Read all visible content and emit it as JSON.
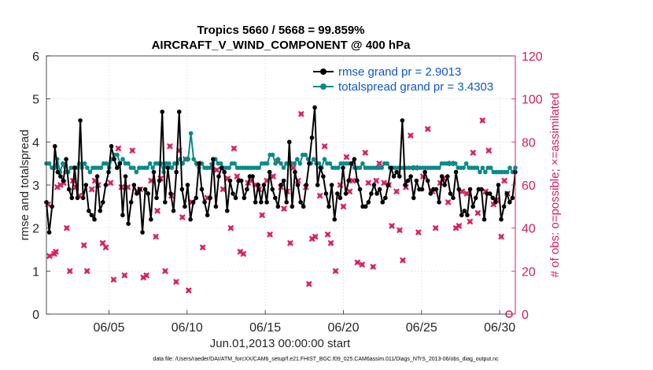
{
  "chart_data": {
    "type": "line",
    "title": "Tropics 5660 / 5668 = 99.859%",
    "subtitle": "AIRCRAFT_V_WIND_COMPONENT @ 400 hPa",
    "xlabel": "Jun.01,2013 00:00:00 start",
    "ylabel": "rmse and totalspread",
    "ylabel_right": "# of obs: o=possible; ×=assimilated",
    "xlim": [
      1,
      31
    ],
    "ylim": [
      0,
      6
    ],
    "ylim_right": [
      0,
      120
    ],
    "x_ticks": [
      5,
      10,
      15,
      20,
      25,
      30
    ],
    "x_tick_labels": [
      "06/05",
      "06/10",
      "06/15",
      "06/20",
      "06/25",
      "06/30"
    ],
    "y_ticks": [
      0,
      1,
      2,
      3,
      4,
      5,
      6
    ],
    "y_ticks_right": [
      0,
      20,
      40,
      60,
      80,
      100,
      120
    ],
    "footnote": "data file: /Users/raeder/DAI/ATM_forcXX/CAM6_setup/f.e21.FHIST_BGC.f09_025.CAM6assim.011/Diags_NTrS_2013-06/obs_diag_output.nc",
    "series": [
      {
        "name": "rmse grand pr = 2.9013",
        "color": "#000000",
        "marker": "circle",
        "values": [
          2.6,
          1.9,
          2.5,
          3.9,
          3.3,
          3.2,
          3.1,
          3.6,
          2.9,
          2.7,
          3.4,
          2.7,
          4.5,
          2.7,
          3.0,
          2.4,
          2.3,
          2.2,
          3.2,
          2.4,
          2.6,
          3.0,
          3.3,
          3.9,
          3.6,
          3.4,
          3.5,
          2.3,
          3.2,
          2.1,
          2.6,
          3.0,
          2.8,
          2.9,
          1.9,
          2.9,
          2.8,
          2.2,
          3.3,
          2.7,
          3.1,
          4.7,
          2.6,
          3.4,
          2.8,
          2.4,
          3.3,
          4.7,
          2.9,
          2.5,
          3.0,
          2.2,
          2.6,
          2.7,
          3.5,
          2.9,
          2.6,
          2.3,
          2.7,
          3.6,
          2.5,
          3.2,
          3.4,
          3.3,
          2.4,
          3.1,
          2.8,
          2.7,
          3.1,
          3.1,
          2.7,
          2.9,
          3.2,
          3.2,
          2.6,
          3.0,
          2.6,
          3.0,
          2.6,
          3.3,
          2.9,
          2.7,
          2.5,
          3.0,
          3.1,
          2.6,
          4.0,
          2.5,
          3.3,
          3.0,
          2.6,
          2.5,
          3.0,
          3.5,
          4.1,
          4.8,
          3.0,
          3.4,
          3.2,
          2.8,
          2.5,
          3.0,
          2.2,
          2.8,
          2.7,
          3.4,
          2.8,
          3.1,
          3.5,
          3.6,
          3.1,
          2.9,
          2.5,
          2.5,
          2.6,
          2.8,
          3.0,
          2.8,
          2.9,
          2.6,
          2.7,
          3.0,
          3.4,
          3.2,
          3.3,
          3.2,
          4.5,
          3.0,
          3.1,
          3.2,
          2.7,
          3.1,
          2.9,
          2.9,
          3.3,
          3.1,
          2.8,
          2.9,
          2.9,
          2.6,
          3.2,
          3.0,
          3.2,
          2.8,
          2.7,
          3.3,
          2.9,
          2.3,
          2.4,
          2.3,
          2.9,
          2.5,
          2.7,
          2.9,
          2.9,
          2.2,
          2.8,
          2.8,
          2.7,
          2.6,
          3.0,
          2.2,
          2.5,
          2.8,
          2.6,
          2.7,
          3.3
        ]
      },
      {
        "name": "totalspread grand pr = 3.4303",
        "color": "#0a8a8a",
        "marker": "circle",
        "values": [
          3.5,
          3.5,
          3.4,
          3.4,
          3.6,
          3.3,
          3.5,
          3.3,
          3.3,
          3.4,
          3.4,
          3.4,
          3.5,
          3.4,
          3.5,
          3.4,
          3.3,
          3.4,
          3.4,
          3.4,
          3.4,
          3.5,
          3.5,
          3.4,
          3.6,
          3.7,
          3.7,
          3.5,
          3.6,
          3.5,
          3.5,
          3.4,
          3.4,
          3.3,
          3.4,
          3.4,
          3.4,
          3.4,
          3.5,
          3.4,
          3.5,
          3.5,
          3.5,
          3.3,
          3.5,
          3.5,
          3.4,
          3.5,
          3.5,
          3.6,
          3.5,
          3.6,
          3.6,
          4.2,
          3.6,
          3.5,
          3.4,
          3.5,
          3.4,
          3.4,
          3.4,
          3.5,
          3.6,
          3.5,
          3.5,
          3.4,
          3.4,
          3.4,
          3.5,
          3.5,
          3.4,
          3.4,
          3.4,
          3.4,
          3.4,
          3.4,
          3.4,
          3.4,
          3.4,
          3.5,
          3.5,
          3.5,
          3.7,
          3.7,
          3.5,
          3.6,
          3.5,
          3.4,
          3.5,
          3.5,
          3.5,
          3.5,
          3.6,
          3.5,
          3.7,
          3.7,
          3.6,
          3.5,
          3.6,
          3.5,
          3.5,
          3.4,
          3.6,
          3.5,
          3.5,
          3.4,
          3.4,
          3.4,
          3.5,
          3.5,
          3.5,
          3.5,
          3.5,
          3.4,
          3.4,
          3.4,
          3.5,
          3.4,
          3.4,
          3.4,
          3.4,
          3.4,
          3.4,
          3.4,
          3.5,
          3.5,
          3.4,
          3.4,
          3.4,
          3.4,
          3.4,
          3.4,
          3.4,
          3.4,
          3.4,
          3.4,
          3.4,
          3.4,
          3.4,
          3.4,
          3.4,
          3.4,
          3.4,
          3.4,
          3.4,
          3.5,
          3.5,
          3.5,
          3.5,
          3.5,
          3.5,
          3.4,
          3.4,
          3.4,
          3.5,
          3.4,
          3.4,
          3.4,
          3.4,
          3.3,
          3.4,
          3.3,
          3.4,
          3.4,
          3.3,
          3.3,
          3.3,
          3.3,
          3.3,
          3.3,
          3.4,
          3.3,
          3.4
        ]
      }
    ],
    "obs_assimilated": {
      "name": "# of obs assimilated",
      "color": "#d81b60",
      "marker": "x",
      "points": [
        [
          1.1,
          51
        ],
        [
          1.2,
          27
        ],
        [
          1.5,
          28
        ],
        [
          1.6,
          29
        ],
        [
          1.7,
          59
        ],
        [
          1.9,
          60
        ],
        [
          2.1,
          61
        ],
        [
          2.3,
          40
        ],
        [
          2.5,
          20
        ],
        [
          2.7,
          62
        ],
        [
          2.9,
          59
        ],
        [
          3.1,
          55
        ],
        [
          3.4,
          32
        ],
        [
          3.6,
          20
        ],
        [
          3.9,
          58
        ],
        [
          4.1,
          62
        ],
        [
          4.3,
          60
        ],
        [
          4.6,
          33
        ],
        [
          4.8,
          31
        ],
        [
          5.1,
          61
        ],
        [
          5.3,
          16
        ],
        [
          5.6,
          77
        ],
        [
          5.8,
          59
        ],
        [
          6.0,
          18
        ],
        [
          6.2,
          59
        ],
        [
          6.5,
          76
        ],
        [
          6.8,
          57
        ],
        [
          7.0,
          58
        ],
        [
          7.2,
          17
        ],
        [
          7.4,
          18
        ],
        [
          7.7,
          62
        ],
        [
          8.0,
          36
        ],
        [
          8.1,
          48
        ],
        [
          8.3,
          63
        ],
        [
          8.6,
          20
        ],
        [
          8.9,
          78
        ],
        [
          9.0,
          55
        ],
        [
          9.3,
          15
        ],
        [
          9.5,
          76
        ],
        [
          9.7,
          45
        ],
        [
          9.9,
          72
        ],
        [
          10.1,
          11
        ],
        [
          10.3,
          52
        ],
        [
          10.7,
          70
        ],
        [
          11.0,
          31
        ],
        [
          11.3,
          54
        ],
        [
          11.6,
          69
        ],
        [
          11.9,
          67
        ],
        [
          12.3,
          58
        ],
        [
          12.6,
          63
        ],
        [
          12.8,
          40
        ],
        [
          13.0,
          77
        ],
        [
          13.2,
          64
        ],
        [
          13.4,
          29
        ],
        [
          13.6,
          28
        ],
        [
          13.9,
          61
        ],
        [
          14.1,
          62
        ],
        [
          14.4,
          60
        ],
        [
          14.6,
          58
        ],
        [
          14.8,
          46
        ],
        [
          15.1,
          62
        ],
        [
          15.3,
          37
        ],
        [
          15.5,
          64
        ],
        [
          15.8,
          71
        ],
        [
          16.0,
          59
        ],
        [
          16.2,
          49
        ],
        [
          16.4,
          57
        ],
        [
          16.6,
          33
        ],
        [
          16.8,
          68
        ],
        [
          17.1,
          62
        ],
        [
          17.3,
          93
        ],
        [
          17.6,
          59
        ],
        [
          17.8,
          14
        ],
        [
          18.0,
          35
        ],
        [
          18.2,
          36
        ],
        [
          18.5,
          55
        ],
        [
          18.8,
          78
        ],
        [
          19.0,
          37
        ],
        [
          19.2,
          33
        ],
        [
          19.5,
          20
        ],
        [
          19.8,
          60
        ],
        [
          20.0,
          50
        ],
        [
          20.2,
          73
        ],
        [
          20.4,
          57
        ],
        [
          20.6,
          62
        ],
        [
          20.9,
          24
        ],
        [
          21.2,
          23
        ],
        [
          21.4,
          75
        ],
        [
          21.6,
          61
        ],
        [
          21.9,
          22
        ],
        [
          22.1,
          62
        ],
        [
          22.3,
          70
        ],
        [
          22.6,
          61
        ],
        [
          22.9,
          60
        ],
        [
          23.1,
          41
        ],
        [
          23.4,
          57
        ],
        [
          23.6,
          39
        ],
        [
          23.8,
          25
        ],
        [
          24.0,
          59
        ],
        [
          24.3,
          83
        ],
        [
          24.6,
          68
        ],
        [
          24.8,
          38
        ],
        [
          25.1,
          64
        ],
        [
          25.4,
          86
        ],
        [
          25.7,
          57
        ],
        [
          25.9,
          40
        ],
        [
          26.2,
          61
        ],
        [
          26.4,
          63
        ],
        [
          26.7,
          52
        ],
        [
          26.9,
          70
        ],
        [
          27.2,
          40
        ],
        [
          27.4,
          41
        ],
        [
          27.6,
          57
        ],
        [
          27.9,
          56
        ],
        [
          28.1,
          43
        ],
        [
          28.3,
          75
        ],
        [
          28.6,
          47
        ],
        [
          28.9,
          90
        ],
        [
          29.1,
          57
        ],
        [
          29.3,
          76
        ],
        [
          29.6,
          51
        ],
        [
          29.8,
          53
        ],
        [
          30.1,
          36
        ],
        [
          30.3,
          62
        ],
        [
          30.5,
          56
        ]
      ]
    },
    "obs_possible_zero_marker": [
      [
        30.6,
        0
      ]
    ]
  }
}
